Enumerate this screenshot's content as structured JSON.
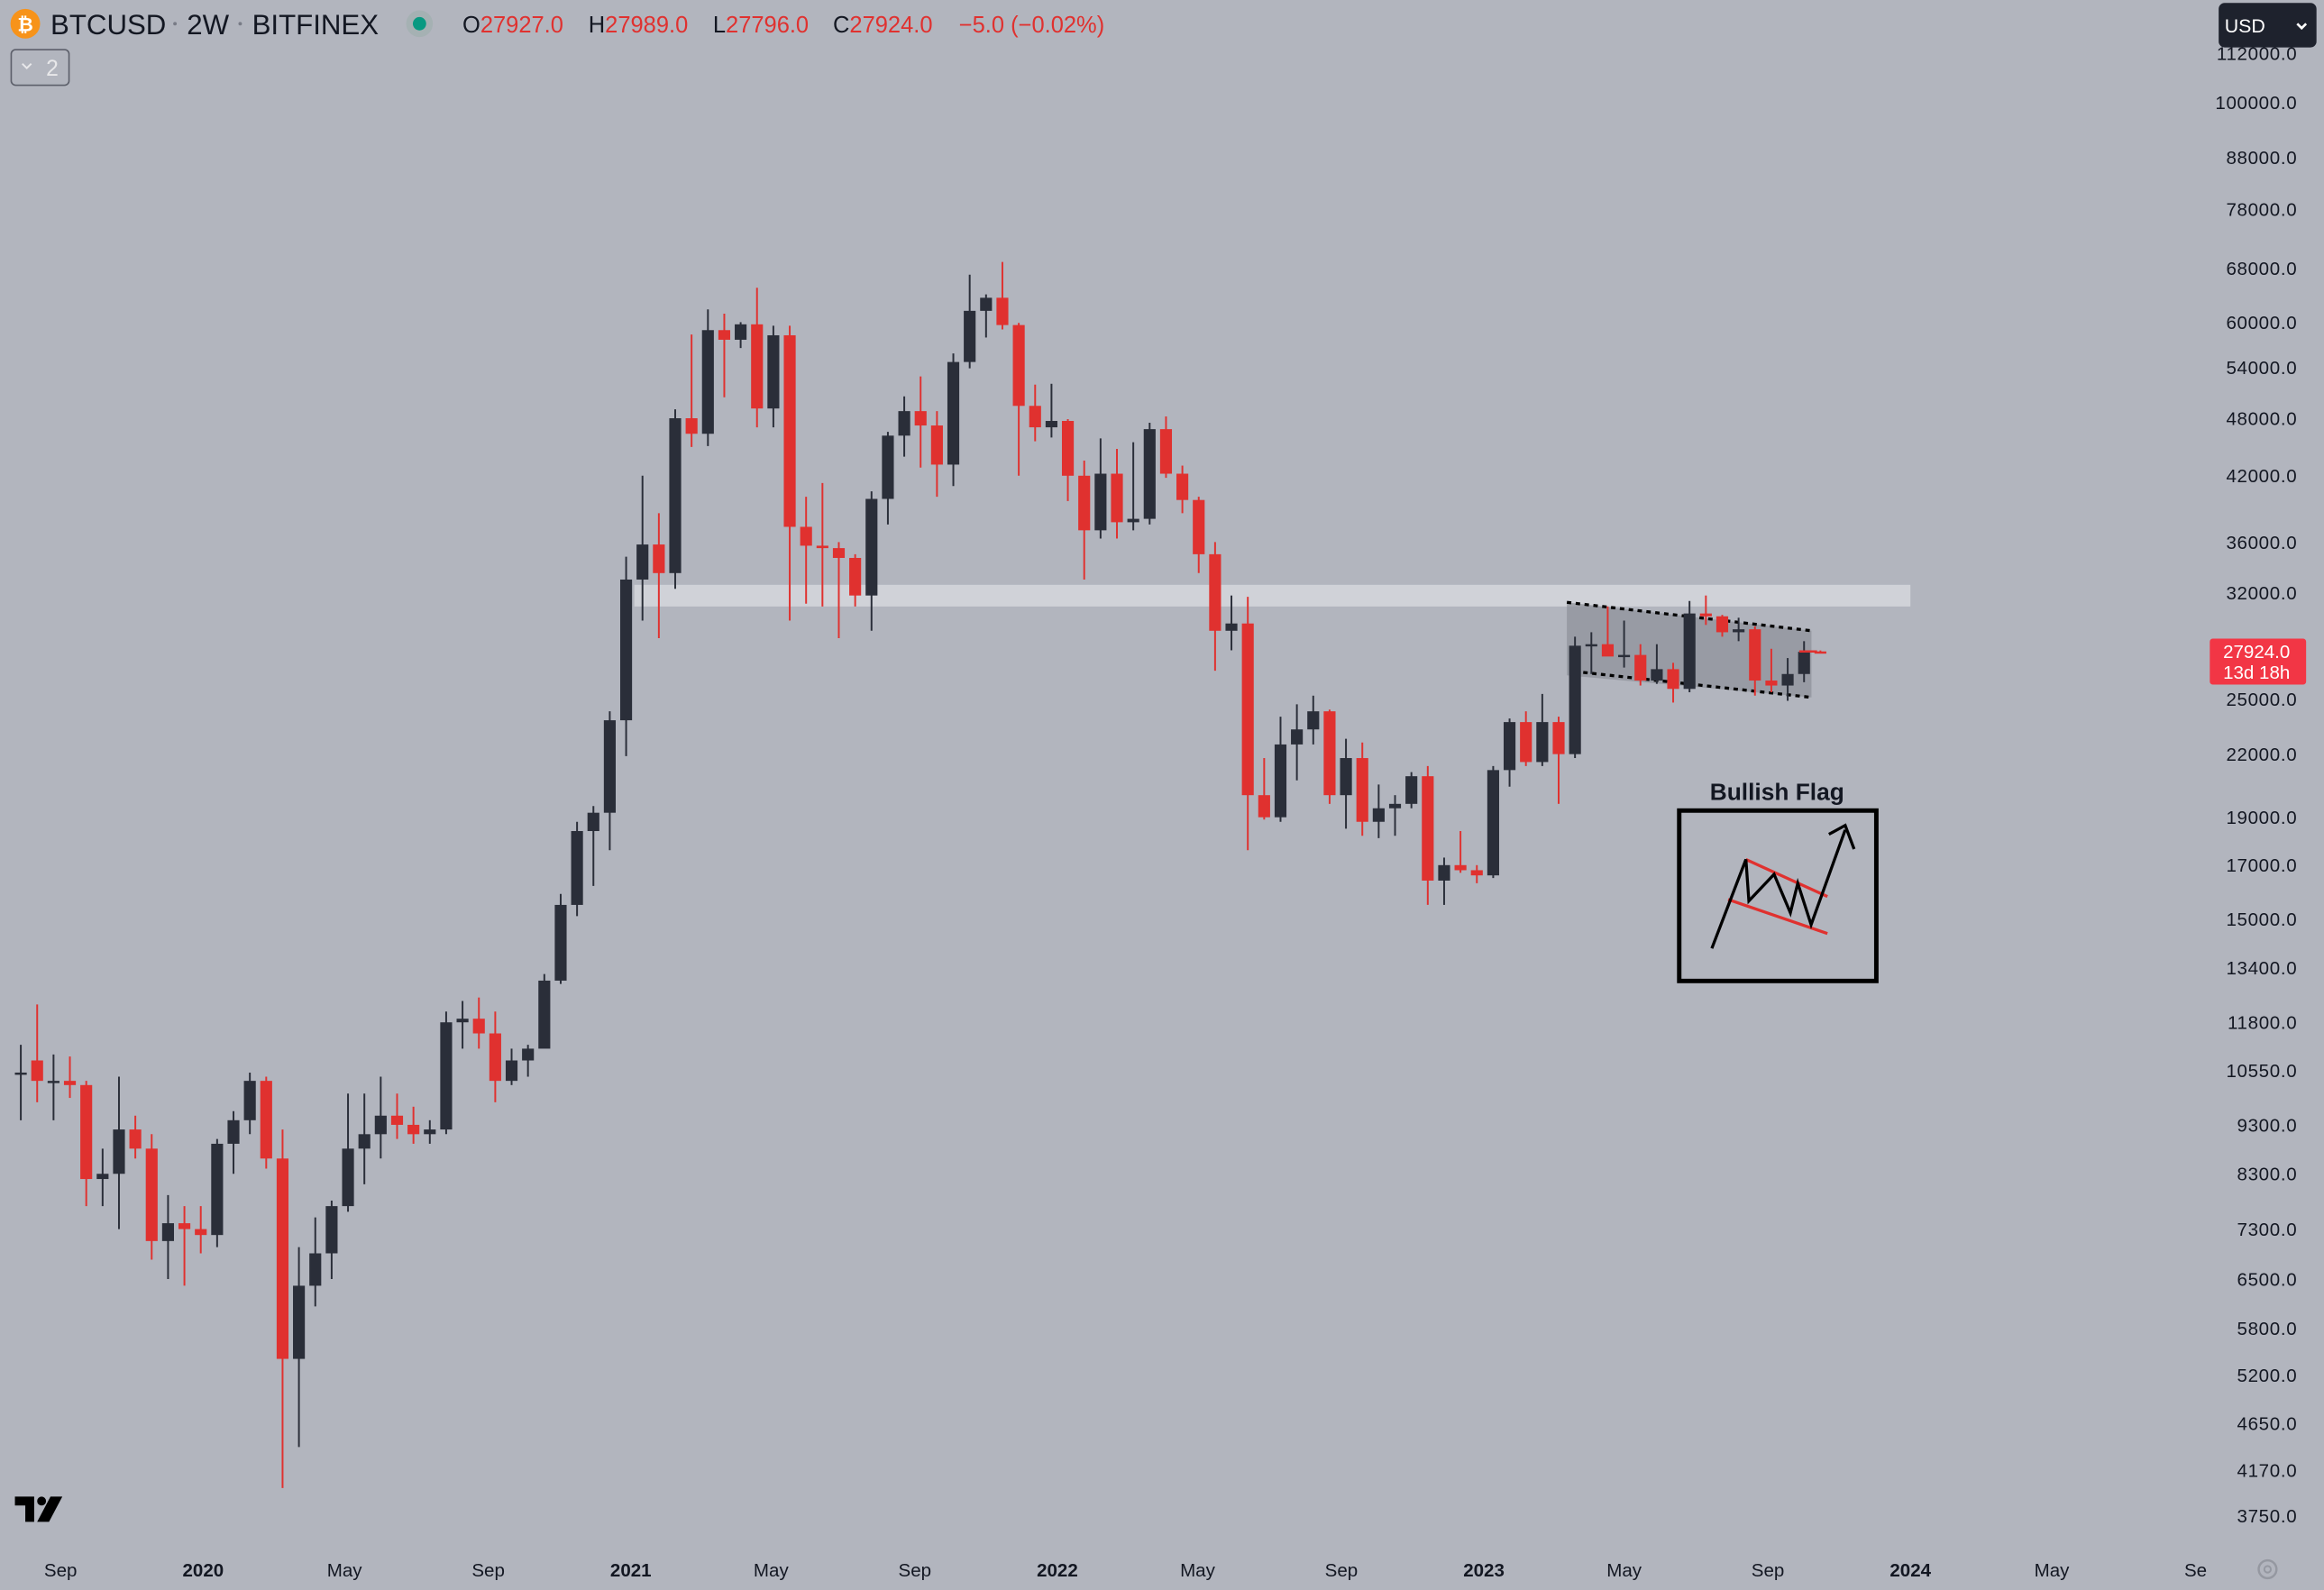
{
  "header": {
    "symbol": "BTCUSD",
    "interval": "2W",
    "exchange": "BITFINEX",
    "open_label": "O",
    "open": "27927.0",
    "high_label": "H",
    "high": "27989.0",
    "low_label": "L",
    "low": "27796.0",
    "close_label": "C",
    "close": "27924.0",
    "change": "−5.0 (−0.02%)",
    "collapse_count": "2",
    "currency": "USD"
  },
  "price_tag": {
    "price": "27924.0",
    "countdown": "13d 18h"
  },
  "annotation": {
    "title": "Bullish Flag"
  },
  "colors": {
    "up": "#2a2e39",
    "down": "#e0312f",
    "background": "#b2b5be",
    "tag": "#f23645",
    "status_dot": "#089981"
  },
  "chart_data": {
    "type": "candlestick",
    "scale": "log",
    "ylim": [
      3750,
      112000
    ],
    "price_ticks": [
      "112000.0",
      "100000.0",
      "88000.0",
      "78000.0",
      "68000.0",
      "60000.0",
      "54000.0",
      "48000.0",
      "42000.0",
      "36000.0",
      "32000.0",
      "25000.0",
      "22000.0",
      "19000.0",
      "17000.0",
      "15000.0",
      "13400.0",
      "11800.0",
      "10550.0",
      "9300.0",
      "8300.0",
      "7300.0",
      "6500.0",
      "5800.0",
      "5200.0",
      "4650.0",
      "4170.0",
      "3750.0"
    ],
    "time_ticks": [
      {
        "label": "Sep",
        "date": "2019-09-01"
      },
      {
        "label": "2020",
        "date": "2020-01-01",
        "year": true
      },
      {
        "label": "May",
        "date": "2020-05-01"
      },
      {
        "label": "Sep",
        "date": "2020-09-01"
      },
      {
        "label": "2021",
        "date": "2021-01-01",
        "year": true
      },
      {
        "label": "May",
        "date": "2021-05-01"
      },
      {
        "label": "Sep",
        "date": "2021-09-01"
      },
      {
        "label": "2022",
        "date": "2022-01-01",
        "year": true
      },
      {
        "label": "May",
        "date": "2022-05-01"
      },
      {
        "label": "Sep",
        "date": "2022-09-01"
      },
      {
        "label": "2023",
        "date": "2023-01-01",
        "year": true
      },
      {
        "label": "May",
        "date": "2023-05-01"
      },
      {
        "label": "Sep",
        "date": "2023-09-01"
      },
      {
        "label": "2024",
        "date": "2024-01-01",
        "year": true
      },
      {
        "label": "May",
        "date": "2024-05-01"
      },
      {
        "label": "Se",
        "date": "2024-09-01"
      }
    ],
    "support_zone": {
      "from": 31000,
      "to": 32600,
      "start": "2021-01-04",
      "end": "2024-01-01"
    },
    "flag_channel": {
      "upper": [
        [
          "2023-03-13",
          31300
        ],
        [
          "2023-10-02",
          29300
        ]
      ],
      "lower": [
        [
          "2023-03-27",
          26600
        ],
        [
          "2023-10-02",
          25100
        ]
      ]
    },
    "candles": [
      [
        "2019-07-22",
        10500,
        11200,
        9400,
        10500
      ],
      [
        "2019-08-05",
        10800,
        12300,
        9800,
        10300
      ],
      [
        "2019-08-19",
        10300,
        10950,
        9400,
        10300
      ],
      [
        "2019-09-02",
        10300,
        10900,
        9900,
        10200
      ],
      [
        "2019-09-16",
        10200,
        10300,
        7700,
        8200
      ],
      [
        "2019-09-30",
        8200,
        8800,
        7700,
        8300
      ],
      [
        "2019-10-14",
        8300,
        10400,
        7300,
        9200
      ],
      [
        "2019-10-28",
        9200,
        9500,
        8600,
        8800
      ],
      [
        "2019-11-11",
        8800,
        9100,
        6800,
        7100
      ],
      [
        "2019-11-25",
        7100,
        7900,
        6500,
        7400
      ],
      [
        "2019-12-09",
        7400,
        7700,
        6400,
        7300
      ],
      [
        "2019-12-23",
        7300,
        7700,
        6900,
        7200
      ],
      [
        "2020-01-06",
        7200,
        9000,
        7000,
        8900
      ],
      [
        "2020-01-20",
        8900,
        9600,
        8300,
        9400
      ],
      [
        "2020-02-03",
        9400,
        10500,
        9100,
        10300
      ],
      [
        "2020-02-17",
        10300,
        10400,
        8400,
        8600
      ],
      [
        "2020-03-02",
        8600,
        9200,
        4000,
        5400
      ],
      [
        "2020-03-16",
        5400,
        7000,
        4400,
        6400
      ],
      [
        "2020-03-30",
        6400,
        7500,
        6100,
        6900
      ],
      [
        "2020-04-13",
        6900,
        7800,
        6500,
        7700
      ],
      [
        "2020-04-27",
        7700,
        10000,
        7600,
        8800
      ],
      [
        "2020-05-11",
        8800,
        10000,
        8100,
        9100
      ],
      [
        "2020-05-25",
        9100,
        10400,
        8600,
        9500
      ],
      [
        "2020-06-08",
        9500,
        10000,
        9000,
        9300
      ],
      [
        "2020-06-22",
        9300,
        9700,
        8900,
        9100
      ],
      [
        "2020-07-06",
        9100,
        9400,
        8900,
        9200
      ],
      [
        "2020-07-20",
        9200,
        12100,
        9100,
        11800
      ],
      [
        "2020-08-03",
        11800,
        12400,
        11100,
        11900
      ],
      [
        "2020-08-17",
        11900,
        12500,
        11100,
        11500
      ],
      [
        "2020-08-31",
        11500,
        12100,
        9800,
        10300
      ],
      [
        "2020-09-14",
        10300,
        11100,
        10200,
        10800
      ],
      [
        "2020-09-28",
        10800,
        11200,
        10400,
        11100
      ],
      [
        "2020-10-12",
        11100,
        13200,
        11200,
        13000
      ],
      [
        "2020-10-26",
        13000,
        15900,
        12900,
        15500
      ],
      [
        "2020-11-09",
        15500,
        18800,
        15100,
        18400
      ],
      [
        "2020-11-23",
        18400,
        19500,
        16200,
        19200
      ],
      [
        "2020-12-07",
        19200,
        24300,
        17600,
        23800
      ],
      [
        "2020-12-21",
        23800,
        34800,
        21900,
        33000
      ],
      [
        "2021-01-04",
        33000,
        42000,
        30000,
        35800
      ],
      [
        "2021-01-18",
        35800,
        38500,
        28800,
        33500
      ],
      [
        "2021-02-01",
        33500,
        49000,
        32300,
        48000
      ],
      [
        "2021-02-15",
        48000,
        58300,
        44900,
        46300
      ],
      [
        "2021-03-01",
        46300,
        61800,
        45000,
        58900
      ],
      [
        "2021-03-15",
        58900,
        61200,
        50400,
        57600
      ],
      [
        "2021-03-29",
        57600,
        60000,
        56500,
        59700
      ],
      [
        "2021-04-12",
        59700,
        65000,
        47000,
        49100
      ],
      [
        "2021-04-26",
        49100,
        59500,
        47000,
        58200
      ],
      [
        "2021-05-10",
        58200,
        59500,
        30000,
        37300
      ],
      [
        "2021-05-24",
        37300,
        40000,
        31200,
        35700
      ],
      [
        "2021-06-07",
        35700,
        41300,
        31000,
        35500
      ],
      [
        "2021-06-21",
        35500,
        36000,
        28800,
        34700
      ],
      [
        "2021-07-05",
        34700,
        35000,
        31000,
        31800
      ],
      [
        "2021-07-19",
        31800,
        40500,
        29300,
        39800
      ],
      [
        "2021-08-02",
        39800,
        46500,
        37500,
        46100
      ],
      [
        "2021-08-16",
        46100,
        50500,
        43900,
        48800
      ],
      [
        "2021-08-30",
        48800,
        52900,
        42800,
        47200
      ],
      [
        "2021-09-13",
        47200,
        48800,
        40000,
        43100
      ],
      [
        "2021-09-27",
        43100,
        55800,
        41000,
        54700
      ],
      [
        "2021-10-11",
        54700,
        67000,
        53900,
        61600
      ],
      [
        "2021-10-25",
        61600,
        64000,
        57900,
        63500
      ],
      [
        "2021-11-08",
        63500,
        69000,
        59000,
        59600
      ],
      [
        "2021-11-22",
        59600,
        59900,
        42000,
        49400
      ],
      [
        "2021-12-06",
        49400,
        51900,
        45500,
        47000
      ],
      [
        "2021-12-20",
        47000,
        52000,
        45900,
        47700
      ],
      [
        "2022-01-03",
        47700,
        47900,
        39600,
        42000
      ],
      [
        "2022-01-17",
        42000,
        43500,
        33000,
        37000
      ],
      [
        "2022-01-31",
        37000,
        45800,
        36300,
        42200
      ],
      [
        "2022-02-14",
        42200,
        44700,
        36300,
        37700
      ],
      [
        "2022-02-28",
        37700,
        45400,
        37000,
        38000
      ],
      [
        "2022-03-14",
        38000,
        47500,
        37500,
        46800
      ],
      [
        "2022-03-28",
        46800,
        48200,
        41800,
        42200
      ],
      [
        "2022-04-11",
        42200,
        43000,
        38500,
        39700
      ],
      [
        "2022-04-25",
        39700,
        40000,
        33500,
        35000
      ],
      [
        "2022-05-09",
        35000,
        36000,
        26700,
        29300
      ],
      [
        "2022-05-23",
        29300,
        31800,
        28000,
        29800
      ],
      [
        "2022-06-06",
        29800,
        31700,
        17600,
        20000
      ],
      [
        "2022-06-20",
        20000,
        21800,
        18900,
        19000
      ],
      [
        "2022-07-04",
        19000,
        24000,
        18800,
        22500
      ],
      [
        "2022-07-18",
        22500,
        24700,
        20700,
        23300
      ],
      [
        "2022-08-01",
        23300,
        25200,
        22500,
        24300
      ],
      [
        "2022-08-15",
        24300,
        24400,
        19600,
        20000
      ],
      [
        "2022-08-29",
        20000,
        22800,
        18500,
        21800
      ],
      [
        "2022-09-12",
        21800,
        22600,
        18200,
        18800
      ],
      [
        "2022-09-26",
        18800,
        20500,
        18100,
        19400
      ],
      [
        "2022-10-10",
        19400,
        20000,
        18200,
        19600
      ],
      [
        "2022-10-24",
        19600,
        21100,
        19400,
        20900
      ],
      [
        "2022-11-07",
        20900,
        21400,
        15500,
        16400
      ],
      [
        "2022-11-21",
        16400,
        17300,
        15500,
        17000
      ],
      [
        "2022-12-05",
        17000,
        18400,
        16700,
        16800
      ],
      [
        "2022-12-19",
        16800,
        17000,
        16300,
        16600
      ],
      [
        "2023-01-02",
        16600,
        21400,
        16500,
        21200
      ],
      [
        "2023-01-16",
        21200,
        23900,
        20400,
        23700
      ],
      [
        "2023-01-30",
        23700,
        24300,
        21400,
        21600
      ],
      [
        "2023-02-13",
        21600,
        25300,
        21400,
        23700
      ],
      [
        "2023-02-27",
        23700,
        24000,
        19600,
        22000
      ],
      [
        "2023-03-13",
        22000,
        28900,
        21800,
        28300
      ],
      [
        "2023-03-27",
        28300,
        29200,
        26500,
        28400
      ],
      [
        "2023-04-10",
        28400,
        31000,
        27700,
        27600
      ],
      [
        "2023-04-24",
        27600,
        30000,
        26900,
        27700
      ],
      [
        "2023-05-08",
        27700,
        28400,
        25800,
        26100
      ],
      [
        "2023-05-22",
        26100,
        28400,
        25900,
        26800
      ],
      [
        "2023-06-05",
        26800,
        27200,
        24800,
        25600
      ],
      [
        "2023-06-19",
        25600,
        31400,
        25400,
        30500
      ],
      [
        "2023-07-03",
        30500,
        31800,
        29700,
        30300
      ],
      [
        "2023-07-17",
        30300,
        30400,
        28900,
        29200
      ],
      [
        "2023-07-31",
        29200,
        30200,
        28600,
        29400
      ],
      [
        "2023-08-14",
        29400,
        29600,
        25200,
        26100
      ],
      [
        "2023-08-28",
        26100,
        28100,
        25400,
        25800
      ],
      [
        "2023-09-11",
        25800,
        27500,
        24900,
        26500
      ],
      [
        "2023-09-25",
        26500,
        28600,
        26000,
        27900
      ],
      [
        "2023-10-09",
        27927,
        27989,
        27796,
        27924
      ]
    ]
  }
}
